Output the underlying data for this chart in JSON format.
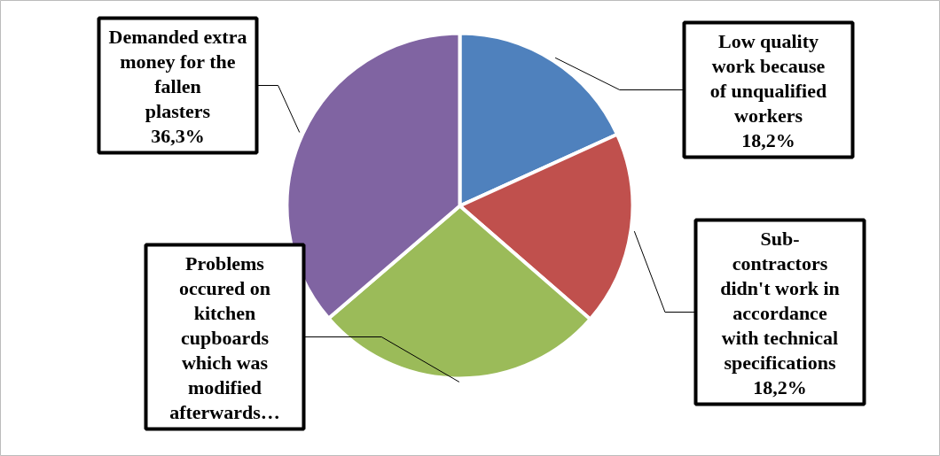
{
  "chart_data": {
    "type": "pie",
    "categories": [
      "Low quality work because of unqualified workers",
      "Sub-contractors didn't work in accordance with technical specifications",
      "Problems occured on kitchen cupboards which was modified afterwards…",
      "Demanded extra money for the fallen plasters"
    ],
    "values": [
      18.2,
      18.2,
      27.3,
      36.3
    ],
    "colors": [
      "#4f81bd",
      "#c0504d",
      "#9bbb59",
      "#8064a2"
    ],
    "value_labels": [
      "18,2%",
      "18,2%",
      null,
      "36,3%"
    ]
  }
}
